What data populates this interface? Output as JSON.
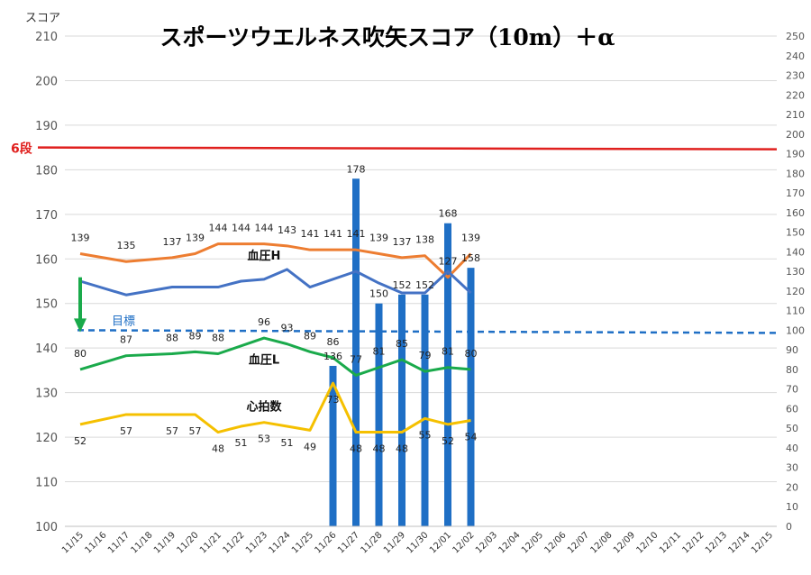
{
  "chart_data": {
    "type": "bar",
    "title": "スポーツウエルネス吹矢スコア（10m）＋α",
    "ylabel": "スコア",
    "ylim": [
      100,
      210
    ],
    "y_ticks": [
      100,
      110,
      120,
      130,
      140,
      150,
      160,
      170,
      180,
      190,
      200,
      210
    ],
    "y2lim": [
      0,
      250
    ],
    "y2_ticks": [
      0,
      10,
      20,
      30,
      40,
      50,
      60,
      70,
      80,
      90,
      100,
      110,
      120,
      130,
      140,
      150,
      160,
      170,
      180,
      190,
      200,
      210,
      220,
      230,
      240,
      250
    ],
    "categories": [
      "11/15",
      "11/16",
      "11/17",
      "11/18",
      "11/19",
      "11/20",
      "11/21",
      "11/22",
      "11/23",
      "11/24",
      "11/25",
      "11/26",
      "11/27",
      "11/28",
      "11/29",
      "11/30",
      "12/01",
      "12/02",
      "12/03",
      "12/04",
      "12/05",
      "12/06",
      "12/07",
      "12/08",
      "12/09",
      "12/10",
      "12/11",
      "12/12",
      "12/13",
      "12/14",
      "12/15"
    ],
    "bars": {
      "color": "#1F6FC5",
      "points": [
        {
          "date": "11/26",
          "value": 136
        },
        {
          "date": "11/27",
          "value": 178
        },
        {
          "date": "11/28",
          "value": 150
        },
        {
          "date": "11/29",
          "value": 152
        },
        {
          "date": "11/30",
          "value": 152
        },
        {
          "date": "12/01",
          "value": 168
        },
        {
          "date": "12/02",
          "value": 158
        }
      ]
    },
    "reference_lines": [
      {
        "label": "6段",
        "value": 185,
        "color": "#E0201E",
        "style": "solid"
      },
      {
        "label": "目標",
        "value": 100,
        "axis": "right",
        "color": "#1F6FC5",
        "style": "dashed"
      }
    ],
    "series": [
      {
        "name": "血圧H",
        "color": "#ED7D31",
        "axis": "right",
        "points": [
          {
            "date": "11/15",
            "value": 139
          },
          {
            "date": "11/17",
            "value": 135
          },
          {
            "date": "11/19",
            "value": 137
          },
          {
            "date": "11/20",
            "value": 139
          },
          {
            "date": "11/21",
            "value": 144
          },
          {
            "date": "11/22",
            "value": 144
          },
          {
            "date": "11/23",
            "value": 144
          },
          {
            "date": "11/24",
            "value": 143
          },
          {
            "date": "11/25",
            "value": 141
          },
          {
            "date": "11/26",
            "value": 141
          },
          {
            "date": "11/27",
            "value": 141
          },
          {
            "date": "11/28",
            "value": 139
          },
          {
            "date": "11/29",
            "value": 137
          },
          {
            "date": "11/30",
            "value": 138
          },
          {
            "date": "12/01",
            "value": 127
          },
          {
            "date": "12/02",
            "value": 139
          }
        ]
      },
      {
        "name": "",
        "color": "#4472C4",
        "axis": "right",
        "points": [
          {
            "date": "11/15",
            "value": 125
          },
          {
            "date": "11/17",
            "value": 118
          },
          {
            "date": "11/19",
            "value": 122
          },
          {
            "date": "11/20",
            "value": 122
          },
          {
            "date": "11/21",
            "value": 122
          },
          {
            "date": "11/22",
            "value": 125
          },
          {
            "date": "11/23",
            "value": 126
          },
          {
            "date": "11/24",
            "value": 131
          },
          {
            "date": "11/25",
            "value": 122
          },
          {
            "date": "11/27",
            "value": 130
          },
          {
            "date": "11/28",
            "value": 124
          },
          {
            "date": "11/29",
            "value": 119
          },
          {
            "date": "11/30",
            "value": 119
          },
          {
            "date": "12/01",
            "value": 130
          },
          {
            "date": "12/02",
            "value": 119
          }
        ]
      },
      {
        "name": "血圧L",
        "color": "#1AAA4B",
        "axis": "right",
        "points": [
          {
            "date": "11/15",
            "value": 80
          },
          {
            "date": "11/17",
            "value": 87
          },
          {
            "date": "11/19",
            "value": 88
          },
          {
            "date": "11/20",
            "value": 89
          },
          {
            "date": "11/21",
            "value": 88
          },
          {
            "date": "11/23",
            "value": 96
          },
          {
            "date": "11/24",
            "value": 93
          },
          {
            "date": "11/25",
            "value": 89
          },
          {
            "date": "11/26",
            "value": 86
          },
          {
            "date": "11/27",
            "value": 77
          },
          {
            "date": "11/28",
            "value": 81
          },
          {
            "date": "11/29",
            "value": 85
          },
          {
            "date": "11/30",
            "value": 79
          },
          {
            "date": "12/01",
            "value": 81
          },
          {
            "date": "12/02",
            "value": 80
          }
        ]
      },
      {
        "name": "心拍数",
        "color": "#F5C000",
        "axis": "right",
        "points": [
          {
            "date": "11/15",
            "value": 52
          },
          {
            "date": "11/17",
            "value": 57
          },
          {
            "date": "11/19",
            "value": 57
          },
          {
            "date": "11/20",
            "value": 57
          },
          {
            "date": "11/21",
            "value": 48
          },
          {
            "date": "11/22",
            "value": 51
          },
          {
            "date": "11/23",
            "value": 53
          },
          {
            "date": "11/24",
            "value": 51
          },
          {
            "date": "11/25",
            "value": 49
          },
          {
            "date": "11/26",
            "value": 73
          },
          {
            "date": "11/27",
            "value": 48
          },
          {
            "date": "11/28",
            "value": 48
          },
          {
            "date": "11/29",
            "value": 48
          },
          {
            "date": "11/30",
            "value": 55
          },
          {
            "date": "12/01",
            "value": 52
          },
          {
            "date": "12/02",
            "value": 54
          }
        ]
      }
    ],
    "grid": true,
    "legend": "none"
  }
}
